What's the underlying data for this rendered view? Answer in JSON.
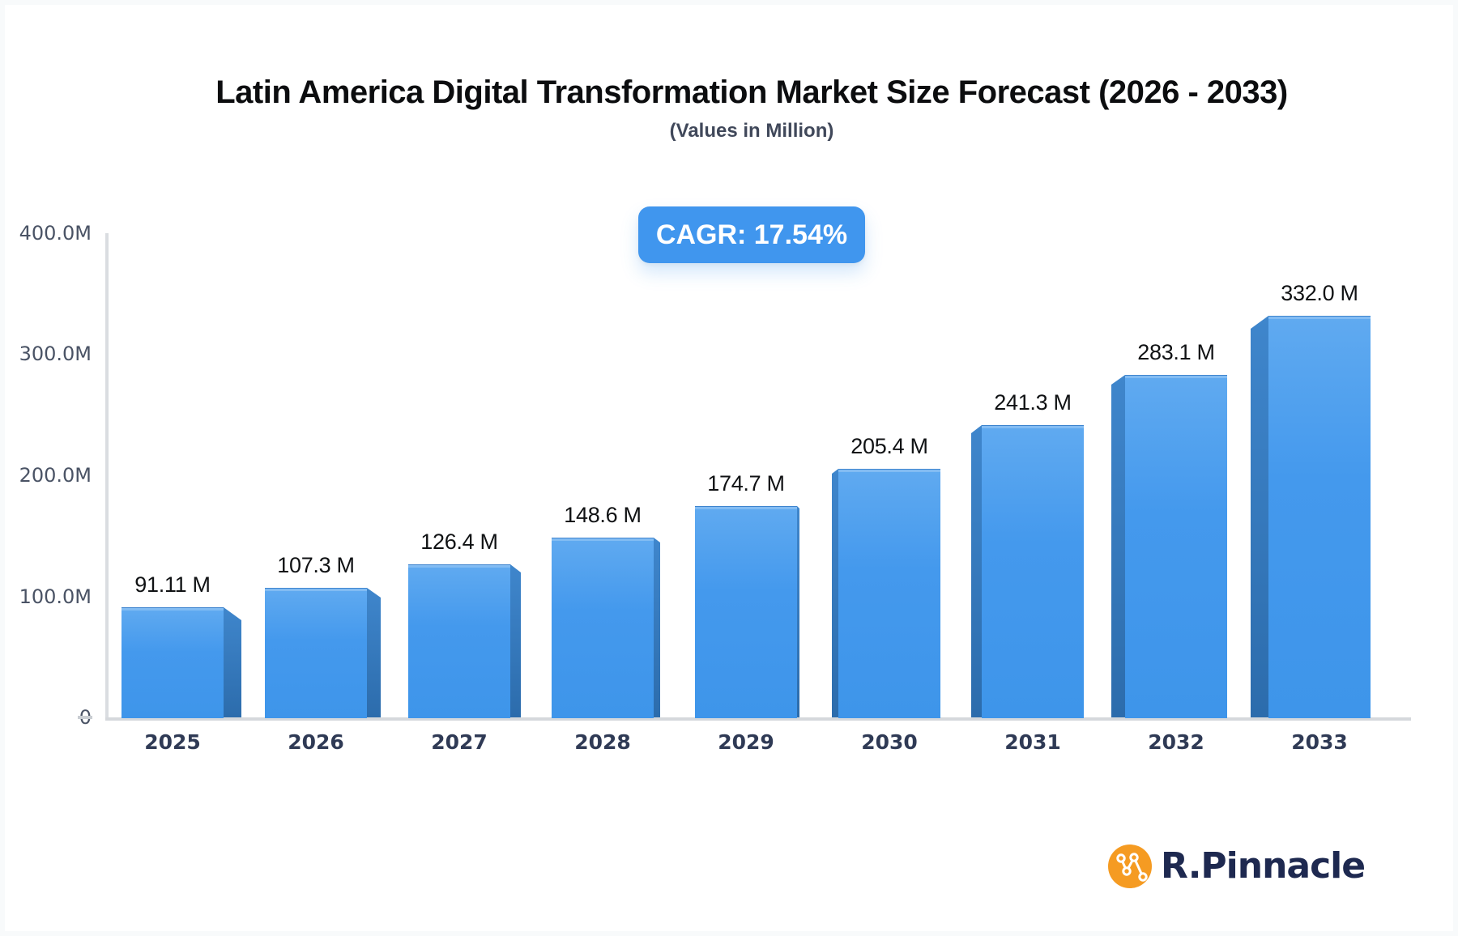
{
  "header": {
    "title": "Latin America Digital Transformation Market Size Forecast (2026 - 2033)",
    "subtitle": "(Values in Million)",
    "badge": {
      "label": "CAGR: 17.54%",
      "bg": "#4096ee",
      "text_color": "#ffffff"
    }
  },
  "chart_data": {
    "type": "bar",
    "title": "Latin America Digital Transformation Market Size Forecast (2026 - 2033)",
    "subtitle": "(Values in Million)",
    "cagr": "17.54%",
    "categories": [
      "2025",
      "2026",
      "2027",
      "2028",
      "2029",
      "2030",
      "2031",
      "2032",
      "2033"
    ],
    "values": [
      91.11,
      107.3,
      126.4,
      148.6,
      174.7,
      205.4,
      241.3,
      283.1,
      332.0
    ],
    "value_labels": [
      "91.11 M",
      "107.3 M",
      "126.4 M",
      "148.6 M",
      "174.7 M",
      "205.4 M",
      "241.3 M",
      "283.1 M",
      "332.0 M"
    ],
    "xlabel": "",
    "ylabel": "",
    "ylim": [
      0,
      400
    ],
    "y_ticks": [
      {
        "value": 0,
        "label": "0"
      },
      {
        "value": 100,
        "label": "100.0M"
      },
      {
        "value": 200,
        "label": "200.0M"
      },
      {
        "value": 300,
        "label": "300.0M"
      },
      {
        "value": 400,
        "label": "400.0M"
      }
    ],
    "grid": false,
    "legend": false,
    "style": "3d-extruded-bars",
    "bar_color_top": "#60aaf0",
    "bar_color_bottom": "#3e95ea",
    "bar_side_color": "#2e6fb0",
    "axis_color": "#d5d8dc",
    "y_tick_label_color": "#4a5365",
    "category_label_color": "#2f3a55",
    "value_label_color": "#101214"
  },
  "footer": {
    "logo_text": "R.Pinnacle",
    "logo_icon": "network-nodes-icon",
    "logo_circle_color": "#f59b22",
    "logo_node_color": "#ffffff",
    "logo_text_color": "#1e2950"
  }
}
